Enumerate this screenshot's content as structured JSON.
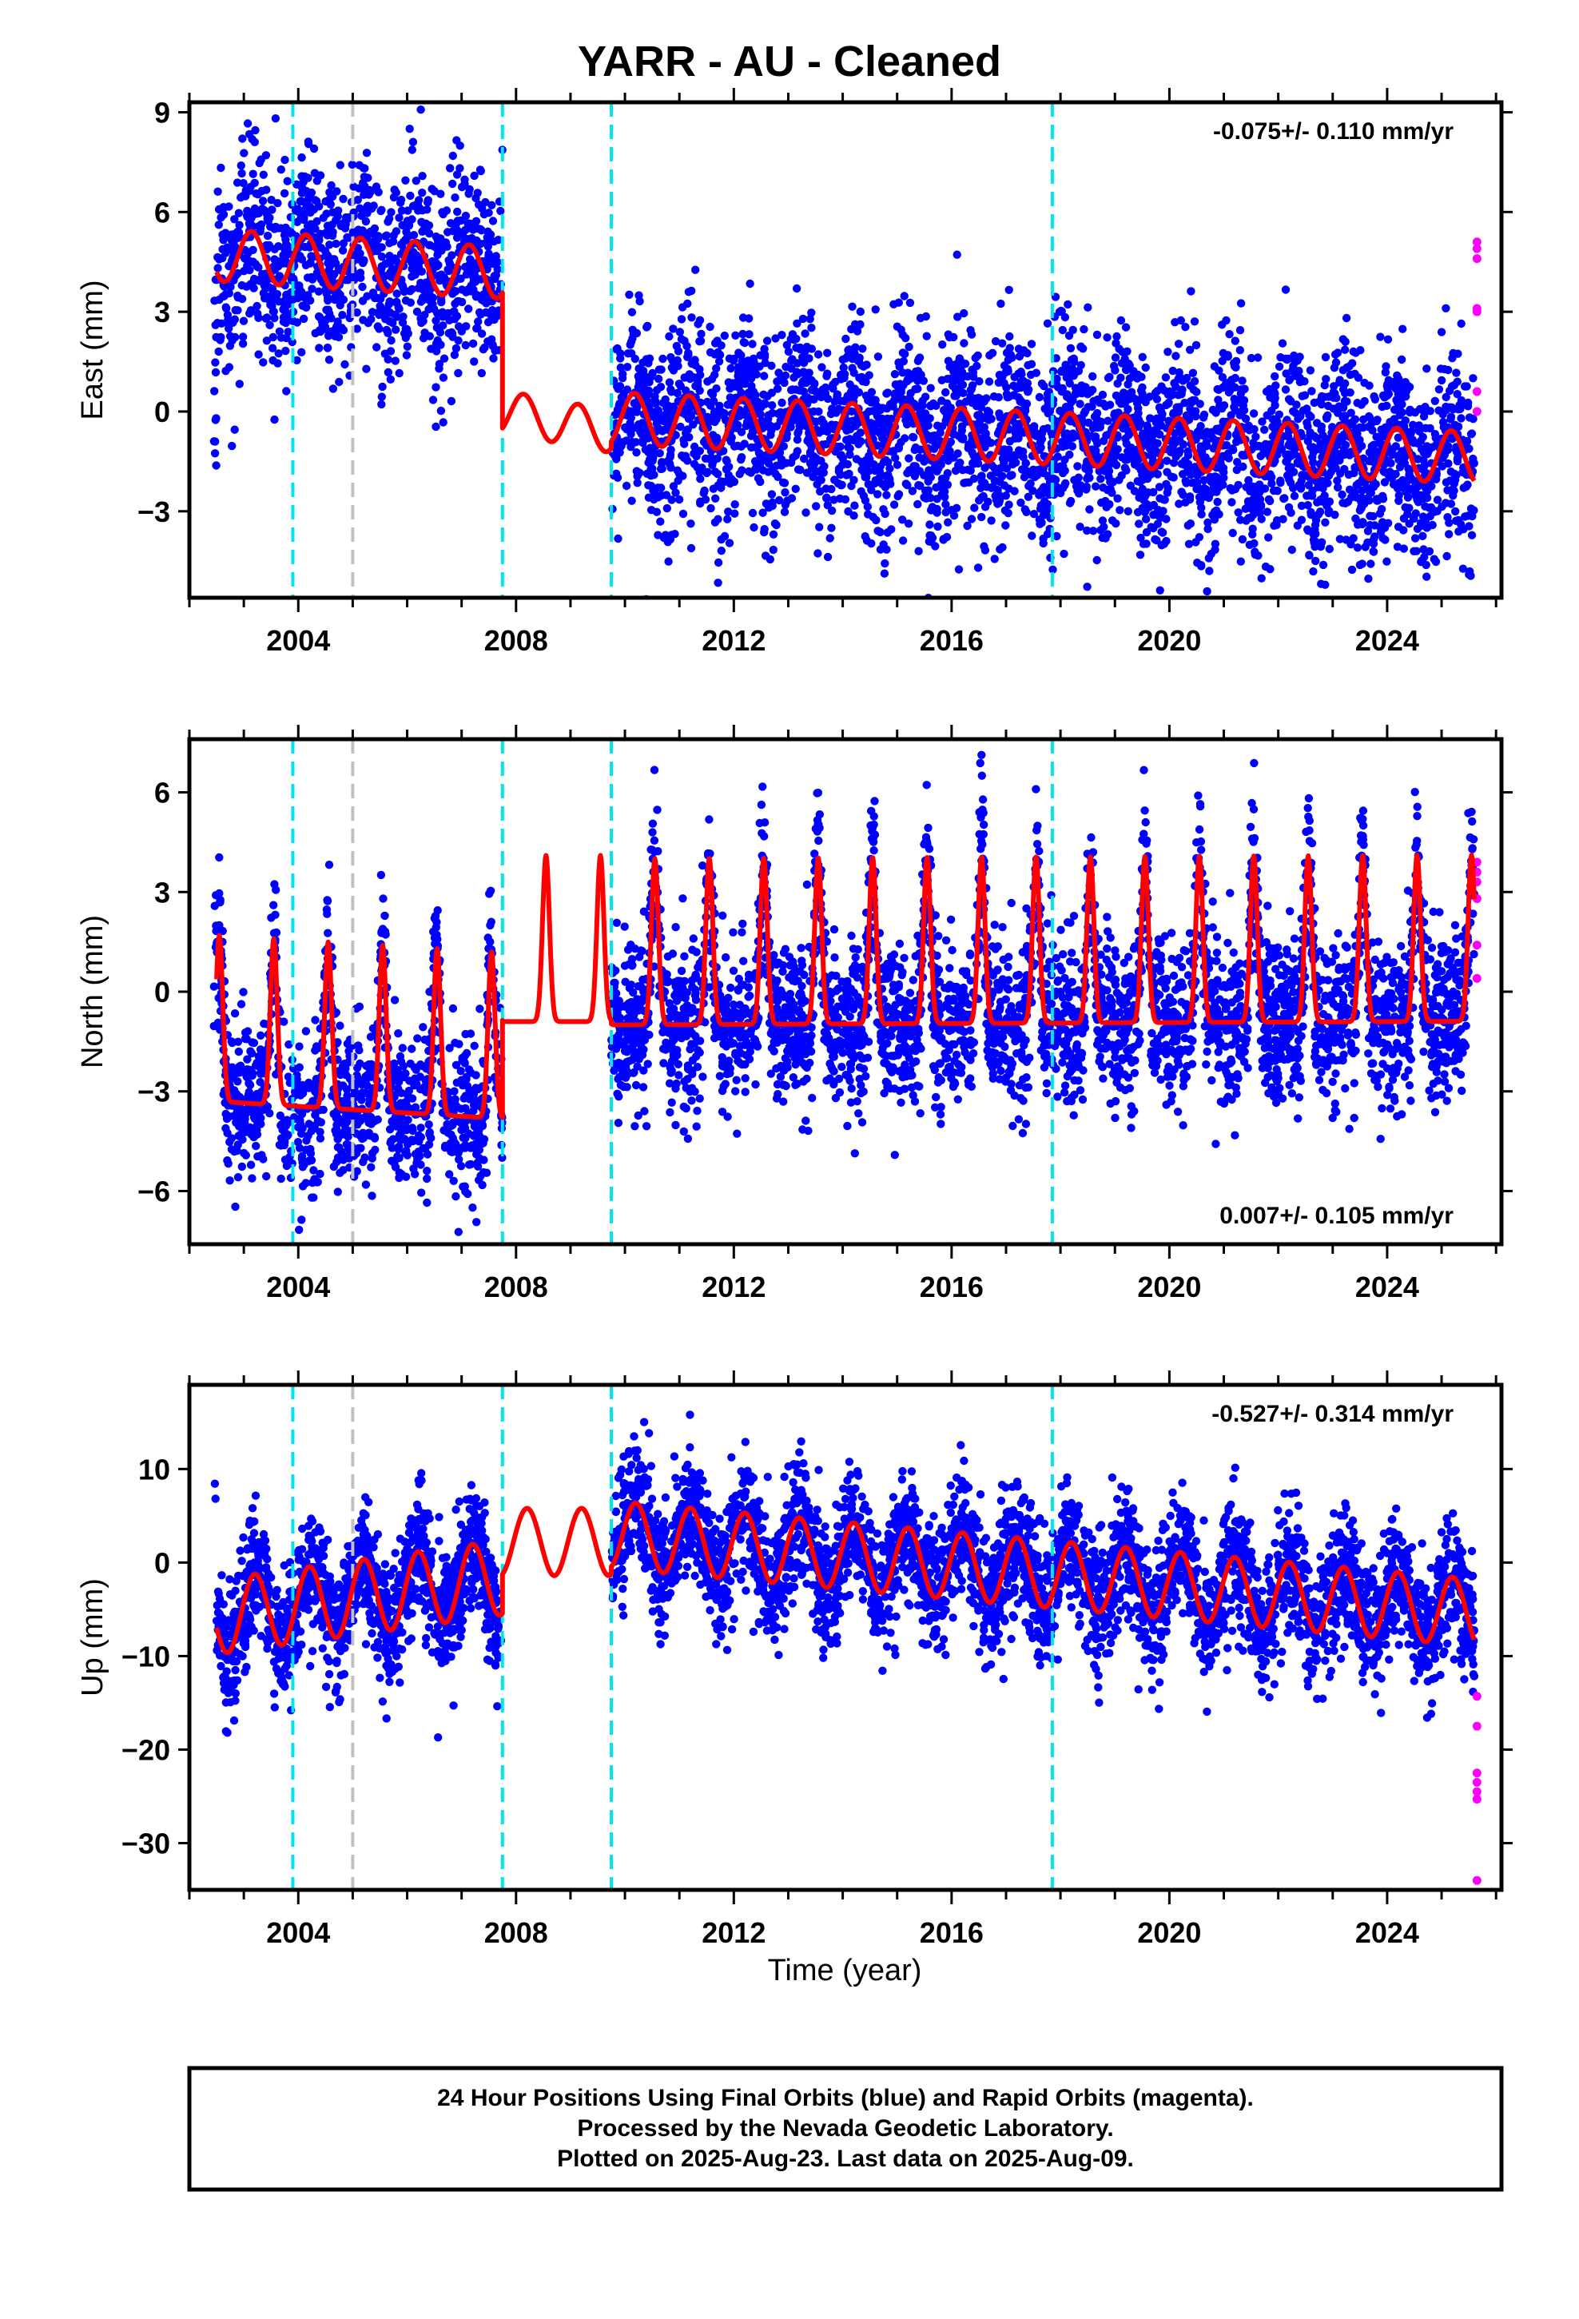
{
  "chart_data": {
    "type": "scatter",
    "title": "YARR  - AU - Cleaned",
    "xlabel": "Time (year)",
    "xlim": [
      2002.0,
      2026.1
    ],
    "x_ticks": [
      "2004",
      "2008",
      "2012",
      "2016",
      "2020",
      "2024"
    ],
    "grid": false,
    "colors": {
      "final_orbits": "#0000ff",
      "rapid_orbits": "#ff00ff",
      "model": "#ff0000",
      "equipment_change": "#00e5ee",
      "other_event": "#c0c0c0"
    },
    "event_lines": [
      {
        "x": 2003.9,
        "type": "equipment_change"
      },
      {
        "x": 2005.0,
        "type": "other_event"
      },
      {
        "x": 2007.75,
        "type": "equipment_change"
      },
      {
        "x": 2009.75,
        "type": "equipment_change"
      },
      {
        "x": 2017.85,
        "type": "equipment_change"
      }
    ],
    "panels": [
      {
        "component": "East",
        "ylabel": "East (mm)",
        "ylim": [
          -5.6,
          9.3
        ],
        "y_ticks": [
          "9",
          "6",
          "3",
          "0",
          "−3"
        ],
        "rate": "-0.075+/- 0.110 mm/yr",
        "rate_position": "top-right",
        "series": [
          {
            "name": "Final Orbits",
            "style": "points",
            "approx_mean": [
              [
                2002.5,
                4.6
              ],
              [
                2005,
                4.6
              ],
              [
                2007.7,
                4.7
              ],
              [
                2009.8,
                0.0
              ],
              [
                2013,
                -0.4
              ],
              [
                2017,
                -0.3
              ],
              [
                2021,
                -0.4
              ],
              [
                2025.5,
                -0.8
              ]
            ],
            "approx_scatter_mm": 1.7
          },
          {
            "name": "Rapid Orbits",
            "style": "points",
            "values": [
              [
                2025.65,
                5.1
              ],
              [
                2025.65,
                4.9
              ],
              [
                2025.65,
                4.6
              ],
              [
                2025.65,
                3.1
              ],
              [
                2025.65,
                3.0
              ],
              [
                2025.65,
                0.6
              ],
              [
                2025.65,
                0.0
              ]
            ]
          },
          {
            "name": "Model",
            "style": "line",
            "segments": [
              {
                "x_range": [
                  2002.5,
                  2007.75
                ],
                "offset": 4.7,
                "trend": -0.1,
                "amp_cos": 0.5,
                "amp_sin": 0.6
              },
              {
                "x_range": [
                  2007.75,
                  2009.75
                ],
                "offset": 0.0,
                "trend": -0.3,
                "amp_cos": 0.4,
                "amp_sin": 0.5
              },
              {
                "x_range": [
                  2009.75,
                  2025.6
                ],
                "offset": -0.2,
                "trend": -0.075,
                "amp_cos": 0.35,
                "amp_sin": 0.7
              }
            ]
          }
        ]
      },
      {
        "component": "North",
        "ylabel": "North (mm)",
        "ylim": [
          -7.6,
          7.6
        ],
        "y_ticks": [
          "6",
          "3",
          "0",
          "−3",
          "−6"
        ],
        "rate": "0.007+/- 0.105 mm/yr",
        "rate_position": "bottom-right",
        "series": [
          {
            "name": "Final Orbits",
            "style": "points",
            "approx_mean": [
              [
                2002.5,
                -1.2
              ],
              [
                2007.7,
                -1.9
              ],
              [
                2009.8,
                0.4
              ],
              [
                2017,
                0.5
              ],
              [
                2025.5,
                0.5
              ]
            ],
            "approx_scatter_mm": 1.6
          },
          {
            "name": "Rapid Orbits",
            "style": "points",
            "values": [
              [
                2025.65,
                3.9
              ],
              [
                2025.65,
                3.6
              ],
              [
                2025.65,
                3.3
              ],
              [
                2025.65,
                2.8
              ],
              [
                2025.65,
                1.4
              ],
              [
                2025.65,
                0.4
              ]
            ]
          },
          {
            "name": "Model",
            "style": "line",
            "segments": [
              {
                "x_range": [
                  2002.5,
                  2007.75
                ],
                "offset": -1.5,
                "trend": -0.1,
                "peak": 1.7,
                "trough": -3.3
              },
              {
                "x_range": [
                  2007.75,
                  2009.75
                ],
                "offset": 0.8,
                "trend": 0.0,
                "peak": 4.1,
                "trough": -0.9
              },
              {
                "x_range": [
                  2009.75,
                  2025.6
                ],
                "offset": 0.9,
                "trend": 0.007,
                "peak": 4.0,
                "trough": -1.0
              }
            ]
          }
        ]
      },
      {
        "component": "Up",
        "ylabel": "Up (mm)",
        "ylim": [
          -35.0,
          19.0
        ],
        "y_ticks": [
          "10",
          "0",
          "−10",
          "−20",
          "−30"
        ],
        "rate": "-0.527+/- 0.314 mm/yr",
        "rate_position": "top-right",
        "series": [
          {
            "name": "Final Orbits",
            "style": "points",
            "approx_mean": [
              [
                2002.5,
                -7.0
              ],
              [
                2007.7,
                -3.5
              ],
              [
                2009.8,
                5.0
              ],
              [
                2013,
                3.0
              ],
              [
                2017,
                1.5
              ],
              [
                2021,
                0.0
              ],
              [
                2025.5,
                -2.0
              ]
            ],
            "approx_scatter_mm": 4.0
          },
          {
            "name": "Rapid Orbits",
            "style": "points",
            "values": [
              [
                2025.65,
                -14.3
              ],
              [
                2025.65,
                -17.5
              ],
              [
                2025.65,
                -22.5
              ],
              [
                2025.65,
                -23.5
              ],
              [
                2025.65,
                -24.5
              ],
              [
                2025.65,
                -25.3
              ],
              [
                2025.65,
                -34.0
              ]
            ]
          },
          {
            "name": "Model",
            "style": "line",
            "segments": [
              {
                "x_range": [
                  2002.5,
                  2007.75
                ],
                "offset": -5.8,
                "trend": 0.8,
                "amp": 4.0
              },
              {
                "x_range": [
                  2007.75,
                  2009.75
                ],
                "offset": 2.2,
                "trend": 0.0,
                "amp": 3.6
              },
              {
                "x_range": [
                  2009.75,
                  2025.6
                ],
                "offset": 3.0,
                "trend": -0.527,
                "amp": 3.6
              }
            ]
          }
        ]
      }
    ]
  },
  "footer": {
    "line1": "24 Hour Positions Using Final Orbits (blue) and Rapid Orbits (magenta).",
    "line2": "Processed by the Nevada Geodetic Laboratory.",
    "line3": "Plotted on 2025-Aug-23. Last data on 2025-Aug-09."
  }
}
